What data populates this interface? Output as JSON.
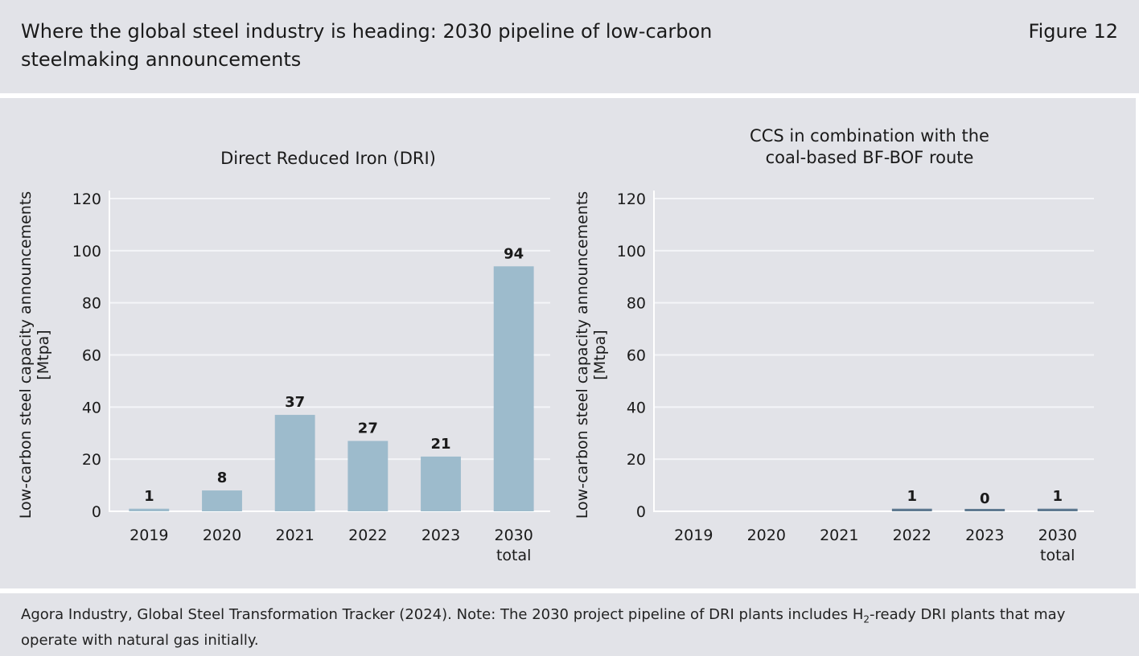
{
  "header": {
    "title": "Where the global steel industry is heading: 2030 pipeline of low-carbon steelmaking announcements",
    "figure_label": "Figure 12"
  },
  "footer": {
    "source_pre": "Agora Industry, Global Steel Transformation Tracker (2024). Note: The 2030 project pipeline of DRI plants includes H",
    "source_sub": "2",
    "source_post": "-ready DRI plants that may operate with natural gas initially."
  },
  "colors": {
    "background": "#e2e3e8",
    "dri_bar": "#9dbbcc",
    "ccs_bar": "#5f7a91",
    "gridline": "#f4f5f8",
    "text": "#1a1a1a"
  },
  "chart_data": [
    {
      "type": "bar",
      "title": [
        "Direct Reduced Iron (DRI)"
      ],
      "ylabel": [
        "Low-carbon steel capacity announcements",
        "[Mtpa]"
      ],
      "categories": [
        [
          "2019"
        ],
        [
          "2020"
        ],
        [
          "2021"
        ],
        [
          "2022"
        ],
        [
          "2023"
        ],
        [
          "2030",
          "total"
        ]
      ],
      "values": [
        1,
        8,
        37,
        27,
        21,
        94
      ],
      "data_labels": [
        "1",
        "8",
        "37",
        "27",
        "21",
        "94"
      ],
      "yticks": [
        0,
        20,
        40,
        60,
        80,
        100,
        120
      ],
      "ylim": [
        0,
        120
      ],
      "grid": true,
      "bar_color": "#9dbbcc"
    },
    {
      "type": "bar",
      "title": [
        "CCS in combination with the",
        "coal-based BF-BOF route"
      ],
      "ylabel": [
        "Low-carbon steel capacity announcements",
        "[Mtpa]"
      ],
      "categories": [
        [
          "2019"
        ],
        [
          "2020"
        ],
        [
          "2021"
        ],
        [
          "2022"
        ],
        [
          "2023"
        ],
        [
          "2030",
          "total"
        ]
      ],
      "values": [
        null,
        null,
        null,
        1,
        0,
        1
      ],
      "data_labels": [
        null,
        null,
        null,
        "1",
        "0",
        "1"
      ],
      "yticks": [
        0,
        20,
        40,
        60,
        80,
        100,
        120
      ],
      "ylim": [
        0,
        120
      ],
      "grid": true,
      "bar_color": "#5f7a91"
    }
  ]
}
